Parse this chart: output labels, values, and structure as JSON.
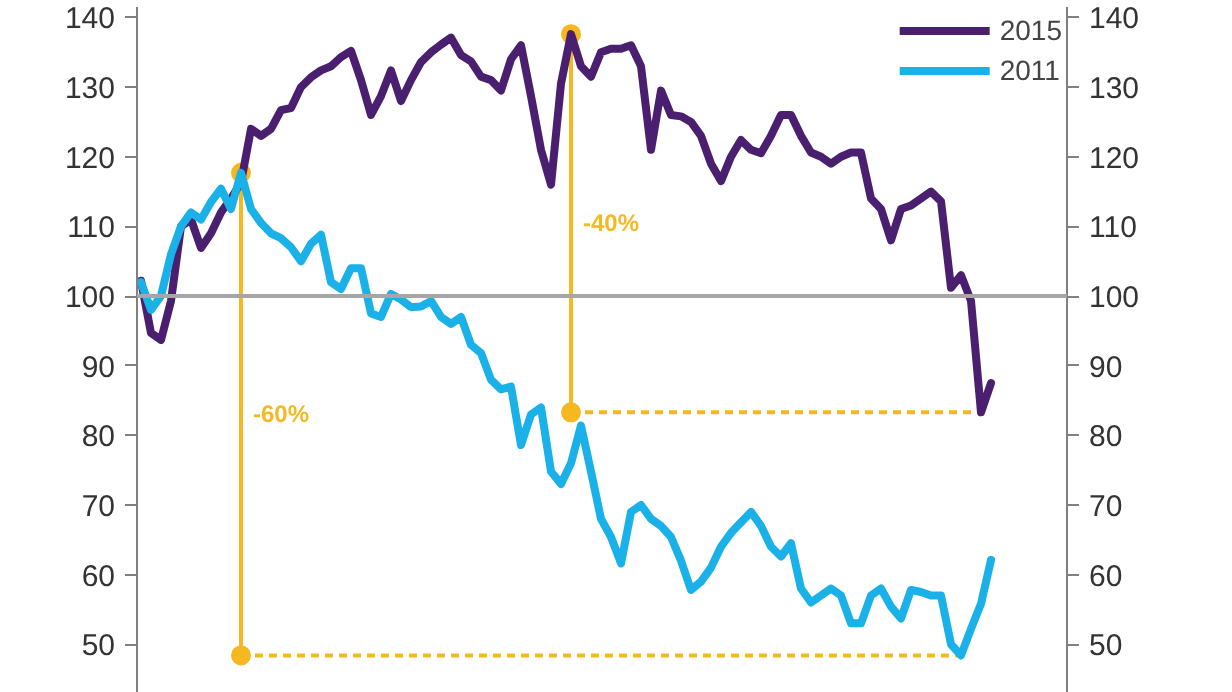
{
  "chart_data": {
    "type": "line",
    "tick_labels": "y",
    "legend": "top right",
    "grid": false,
    "categories": [
      null,
      null,
      null,
      null,
      null,
      null,
      null,
      null,
      null,
      null,
      null,
      null,
      null,
      null,
      null,
      null,
      null,
      null,
      null,
      null,
      null,
      null,
      null,
      null,
      null,
      null,
      null,
      null,
      null,
      null,
      null,
      null,
      null,
      null,
      null,
      null,
      null,
      null,
      null,
      null,
      null,
      null,
      null,
      null,
      null,
      null,
      null,
      null,
      null,
      null,
      null,
      null,
      null,
      null,
      null,
      null,
      null,
      null,
      null,
      null,
      null,
      null,
      null,
      null,
      null,
      null,
      null,
      null,
      null,
      null,
      null,
      null,
      null,
      null,
      null,
      null,
      null,
      null,
      null,
      null,
      null,
      null,
      null,
      null,
      null,
      null
    ],
    "ylim": [
      43,
      141.5
    ],
    "yticks": [
      50,
      60,
      70,
      80,
      90,
      100,
      110,
      120,
      130,
      140
    ],
    "y2lim": [
      43,
      141.5
    ],
    "y2ticks": [
      50,
      60,
      70,
      80,
      90,
      100,
      110,
      120,
      130,
      140
    ],
    "ref_lines": [
      {
        "axis": "y",
        "value": 100,
        "color": "#a6a6a6"
      },
      {
        "axis": "y",
        "value": 83.3,
        "color": "#f5b820",
        "line_style": "dashed"
      },
      {
        "axis": "y",
        "value": 48.4,
        "color": "#f5b820",
        "line_style": "dashed"
      }
    ],
    "annotations": [
      "-40%",
      "-60%"
    ],
    "series": [
      {
        "name": "2015",
        "color": "#4b1f6f",
        "values": [
          102.2,
          94.7,
          93.7,
          99.3,
          110,
          111,
          106.9,
          109,
          112,
          114,
          116.3,
          124,
          123,
          124,
          126.7,
          127,
          130,
          131.4,
          132.4,
          133,
          134.3,
          135.2,
          131,
          126,
          128.7,
          132.4,
          128,
          131,
          133.6,
          135,
          136.1,
          137.1,
          134.6,
          133.7,
          131.5,
          131,
          129.5,
          134,
          136,
          128.7,
          121,
          116,
          130.5,
          137.6,
          133,
          131.5,
          135,
          135.5,
          135.5,
          136,
          133,
          121,
          129.5,
          126,
          125.8,
          125,
          123,
          119,
          116.5,
          120,
          122.4,
          121,
          120.5,
          123,
          126,
          126,
          123,
          120.6,
          120,
          119,
          120,
          120.6,
          120.6,
          114,
          112.5,
          108,
          112.5,
          113,
          114,
          115,
          113.6,
          101.2,
          103,
          99.3,
          83.3,
          87.5
        ]
      },
      {
        "name": "2011",
        "color": "#1ab0e8",
        "values": [
          102,
          98,
          100,
          106,
          110,
          112,
          111,
          113.5,
          115.4,
          112.5,
          117.7,
          112.5,
          110.5,
          109,
          108.3,
          107,
          105,
          107.5,
          108.8,
          102,
          101,
          104,
          104,
          97.5,
          97,
          100.3,
          99.5,
          98.4,
          98.5,
          99.3,
          97,
          96,
          97,
          93,
          91.8,
          88,
          86.6,
          87,
          78.6,
          83,
          84,
          74.8,
          73,
          76,
          81.4,
          74.8,
          68,
          65.4,
          61.6,
          69,
          70,
          68,
          67,
          65.4,
          62,
          57.8,
          59,
          61,
          64,
          66,
          67.5,
          69,
          67,
          64,
          62.6,
          64.5,
          58,
          56,
          57,
          58,
          57,
          53,
          53,
          57,
          58,
          55.4,
          53.7,
          57.8,
          57.5,
          57,
          57,
          50,
          48.4,
          52.2,
          55.8,
          62.1
        ]
      }
    ]
  }
}
